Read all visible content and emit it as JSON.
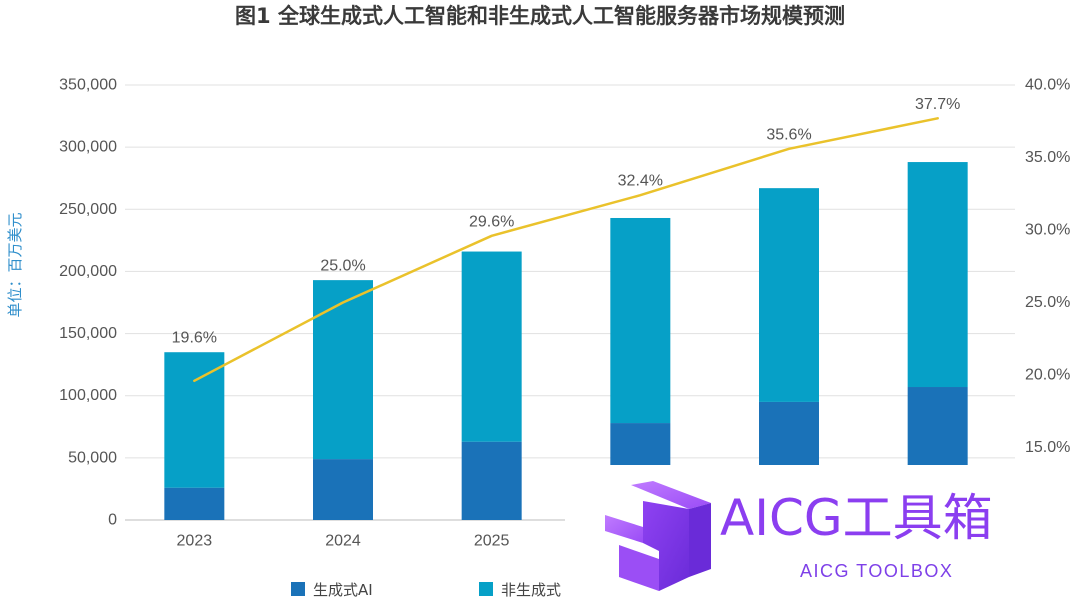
{
  "chart_data": {
    "type": "bar",
    "stacked": true,
    "title": "图1 全球生成式人工智能和非生成式人工智能服务器市场规模预测",
    "xlabel": "",
    "ylabel": "单位：百万美元",
    "categories": [
      "2023",
      "2024",
      "2025",
      "",
      "",
      ""
    ],
    "ylim": [
      0,
      350000
    ],
    "yticks": [
      0,
      50000,
      100000,
      150000,
      200000,
      250000,
      300000,
      350000
    ],
    "ytick_labels": [
      "0",
      "50,000",
      "100,000",
      "150,000",
      "200,000",
      "250,000",
      "300,000",
      "350,000"
    ],
    "y2lim": [
      10,
      40
    ],
    "y2ticks": [
      15,
      20,
      25,
      30,
      35,
      40
    ],
    "y2tick_labels": [
      "15.0%",
      "20.0%",
      "25.0%",
      "30.0%",
      "35.0%",
      "40.0%"
    ],
    "series": [
      {
        "name": "生成式AI",
        "color": "#1a72b8",
        "values": [
          26000,
          49000,
          63000,
          78000,
          95000,
          107000
        ]
      },
      {
        "name": "非生成式",
        "color": "#06a0c7",
        "values": [
          109000,
          144000,
          153000,
          165000,
          172000,
          181000
        ]
      }
    ],
    "line": {
      "axis": "right",
      "color": "#eac22b",
      "values": [
        19.6,
        25.0,
        29.6,
        32.4,
        35.6,
        37.7
      ],
      "labels": [
        "19.6%",
        "25.0%",
        "29.6%",
        "32.4%",
        "35.6%",
        "37.7%"
      ]
    },
    "grid": true,
    "legend": "bottom"
  },
  "watermark": {
    "logo_icon": "cube-arrow-logo-icon",
    "title": "AICG工具箱",
    "subtitle": "AICG TOOLBOX",
    "color": "#8b3ef0",
    "subtitle_color": "#7e40e8"
  }
}
